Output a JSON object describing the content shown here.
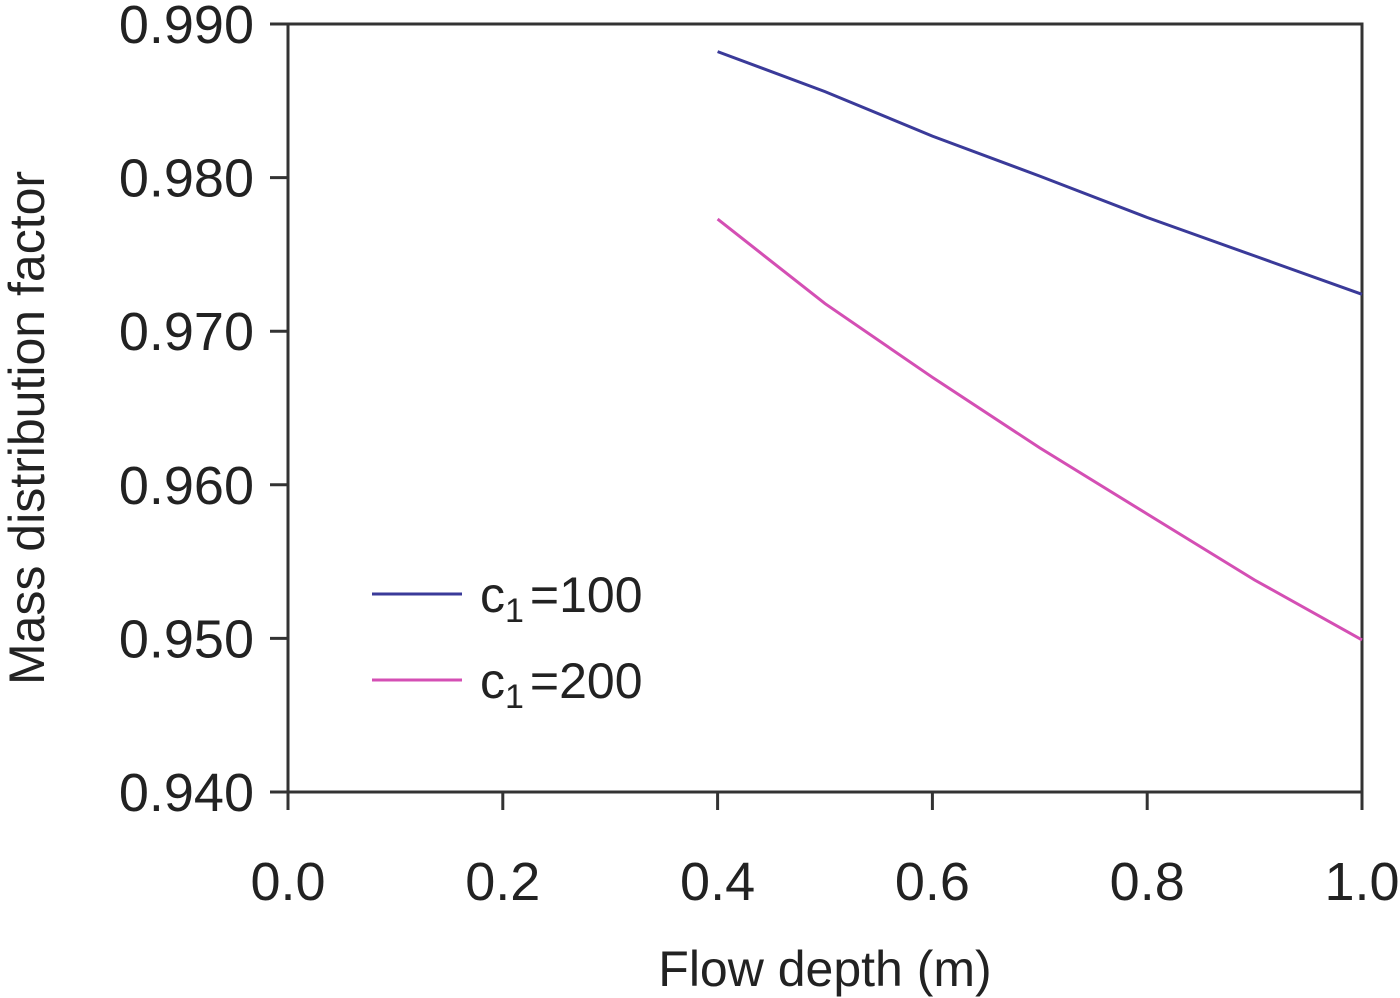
{
  "chart_data": {
    "type": "line",
    "title": "",
    "xlabel": "Flow depth (m)",
    "ylabel": "Mass distribution factor",
    "xlim": [
      0.0,
      1.0
    ],
    "ylim": [
      0.94,
      0.99
    ],
    "x_ticks": [
      "0.0",
      "0.2",
      "0.4",
      "0.6",
      "0.8",
      "1.0"
    ],
    "y_ticks": [
      "0.940",
      "0.950",
      "0.960",
      "0.970",
      "0.980",
      "0.990"
    ],
    "grid": false,
    "legend": "lower-left",
    "series": [
      {
        "name": "c1=100",
        "name_main": "c",
        "name_sub": "1",
        "name_rest": "=100",
        "color": "#3a3a99",
        "x": [
          0.4,
          0.5,
          0.6,
          0.7,
          0.8,
          0.9,
          1.0
        ],
        "y": [
          0.9882,
          0.9856,
          0.9827,
          0.9801,
          0.9774,
          0.9749,
          0.9724
        ]
      },
      {
        "name": "c1=200",
        "name_main": "c",
        "name_sub": "1",
        "name_rest": "=200",
        "color": "#d44fb4",
        "x": [
          0.4,
          0.5,
          0.6,
          0.7,
          0.8,
          0.9,
          1.0
        ],
        "y": [
          0.9773,
          0.9718,
          0.967,
          0.9624,
          0.9581,
          0.9538,
          0.9499
        ]
      }
    ]
  }
}
